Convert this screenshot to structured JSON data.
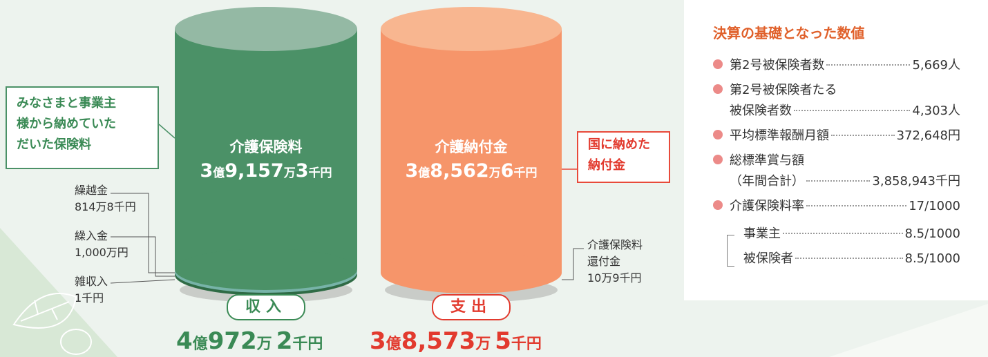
{
  "income": {
    "title": "介護保険料",
    "amount": [
      "3",
      "億",
      "9,157",
      "万",
      "3",
      "千円"
    ],
    "badge": "収入",
    "total": [
      "4",
      "億",
      "972",
      "万",
      "2",
      "千円"
    ],
    "callout": [
      "みなさまと事業主",
      "様から納めていた",
      "だいた保険料"
    ],
    "sub_items": [
      {
        "label": "繰越金",
        "amount": "814万8千円"
      },
      {
        "label": "繰入金",
        "amount": "1,000万円"
      },
      {
        "label": "雑収入",
        "amount": "1千円"
      }
    ]
  },
  "expense": {
    "title": "介護納付金",
    "amount": [
      "3",
      "億",
      "8,562",
      "万",
      "6",
      "千円"
    ],
    "badge": "支出",
    "total": [
      "3",
      "億",
      "8,573",
      "万",
      "5",
      "千円"
    ],
    "callout": [
      "国に納めた",
      "納付金"
    ],
    "sub_item": {
      "label": [
        "介護保険料",
        "還付金"
      ],
      "amount": "10万9千円"
    }
  },
  "basis": {
    "title": "決算の基礎となった数値",
    "items": [
      {
        "label": [
          "第2号被保険者数"
        ],
        "value": "5,669人"
      },
      {
        "label": [
          "第2号被保険者たる",
          "被保険者数"
        ],
        "value": "4,303人"
      },
      {
        "label": [
          "平均標準報酬月額"
        ],
        "value": "372,648円"
      },
      {
        "label": [
          "総標準賞与額",
          "（年間合計）"
        ],
        "value": "3,858,943千円"
      },
      {
        "label": [
          "介護保険料率"
        ],
        "value": "17/1000"
      }
    ],
    "sub_items": [
      {
        "label": "事業主",
        "value": "8.5/1000"
      },
      {
        "label": "被保険者",
        "value": "8.5/1000"
      }
    ]
  }
}
